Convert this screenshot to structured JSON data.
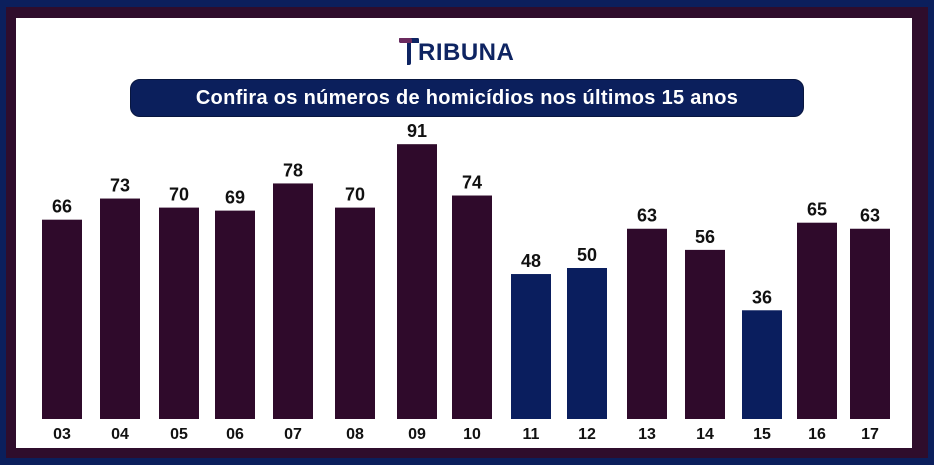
{
  "brand": {
    "logo_text": "RIBUNA",
    "logo_initial": "T"
  },
  "title": "Confira os números de homicídios nos últimos 15 anos",
  "colors": {
    "outer_border": "#0b1f5c",
    "frame": "#2f0d2c",
    "panel": "#ffffff",
    "bar_default": "#2f0a2b",
    "bar_highlight": "#0a1e5e",
    "title_bg": "#0b1f5c",
    "label": "#111111"
  },
  "chart_data": {
    "type": "bar",
    "categories": [
      "03",
      "04",
      "05",
      "06",
      "07",
      "08",
      "09",
      "10",
      "11",
      "12",
      "13",
      "14",
      "15",
      "16",
      "17"
    ],
    "values": [
      66,
      73,
      70,
      69,
      78,
      70,
      91,
      74,
      48,
      50,
      63,
      56,
      36,
      65,
      63
    ],
    "highlighted_categories": [
      "11",
      "12",
      "15"
    ],
    "title": "Confira os números de homicídios nos últimos 15 anos",
    "xlabel": "",
    "ylabel": "",
    "grid": false,
    "legend": "none"
  }
}
